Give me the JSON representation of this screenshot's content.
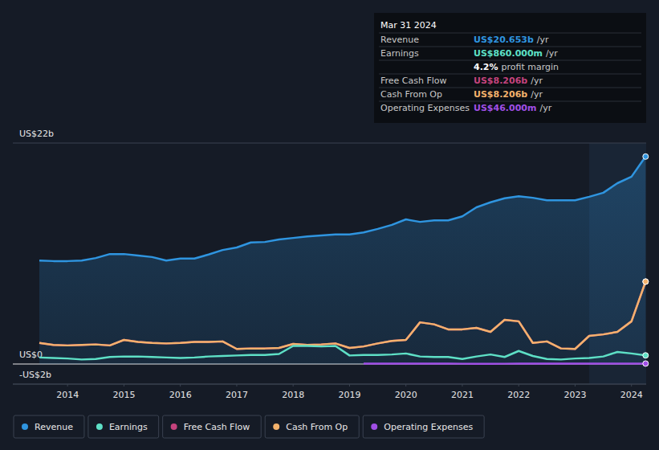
{
  "chart_data": {
    "type": "line",
    "x": [
      2013.5,
      2013.75,
      2014,
      2014.25,
      2014.5,
      2014.75,
      2015,
      2015.25,
      2015.5,
      2015.75,
      2016,
      2016.25,
      2016.5,
      2016.75,
      2017,
      2017.25,
      2017.5,
      2017.75,
      2018,
      2018.25,
      2018.5,
      2018.75,
      2019,
      2019.25,
      2019.5,
      2019.75,
      2020,
      2020.25,
      2020.5,
      2020.75,
      2021,
      2021.25,
      2021.5,
      2021.75,
      2022,
      2022.25,
      2022.5,
      2022.75,
      2023,
      2023.25,
      2023.5,
      2023.75,
      2024,
      2024.25
    ],
    "series": [
      {
        "name": "Revenue",
        "color": "#2f95e0",
        "values": [
          10.3,
          10.25,
          10.25,
          10.3,
          10.55,
          10.95,
          10.95,
          10.8,
          10.65,
          10.3,
          10.5,
          10.5,
          10.9,
          11.35,
          11.6,
          12.1,
          12.15,
          12.4,
          12.55,
          12.7,
          12.8,
          12.9,
          12.9,
          13.1,
          13.45,
          13.85,
          14.4,
          14.15,
          14.3,
          14.3,
          14.7,
          15.6,
          16.1,
          16.5,
          16.7,
          16.55,
          16.3,
          16.3,
          16.3,
          16.65,
          17.05,
          18.0,
          18.65,
          20.653
        ]
      },
      {
        "name": "Earnings",
        "color": "#5ee0c6",
        "values": [
          0.65,
          0.6,
          0.55,
          0.45,
          0.5,
          0.7,
          0.75,
          0.75,
          0.7,
          0.65,
          0.6,
          0.65,
          0.75,
          0.8,
          0.85,
          0.9,
          0.9,
          1.0,
          1.8,
          1.8,
          1.75,
          1.8,
          0.85,
          0.9,
          0.9,
          0.95,
          1.05,
          0.75,
          0.7,
          0.7,
          0.5,
          0.75,
          0.95,
          0.7,
          1.3,
          0.8,
          0.5,
          0.45,
          0.55,
          0.6,
          0.75,
          1.2,
          1.05,
          0.86
        ]
      },
      {
        "name": "Free Cash Flow",
        "color": "#c4437d",
        "values": [
          2.1,
          1.9,
          1.85,
          1.9,
          1.95,
          1.85,
          2.4,
          2.2,
          2.1,
          2.05,
          2.1,
          2.2,
          2.2,
          2.25,
          1.5,
          1.55,
          1.55,
          1.6,
          2.0,
          1.9,
          1.95,
          2.05,
          1.6,
          1.75,
          2.05,
          2.3,
          2.4,
          4.15,
          3.95,
          3.45,
          3.45,
          3.6,
          3.2,
          4.4,
          4.25,
          2.1,
          2.25,
          1.55,
          1.5,
          2.8,
          2.95,
          3.2,
          4.25,
          8.206
        ]
      },
      {
        "name": "Cash From Op",
        "color": "#f3b26c",
        "values": [
          2.1,
          1.9,
          1.85,
          1.9,
          1.95,
          1.85,
          2.4,
          2.2,
          2.1,
          2.05,
          2.1,
          2.2,
          2.2,
          2.25,
          1.5,
          1.55,
          1.55,
          1.6,
          2.0,
          1.9,
          1.95,
          2.05,
          1.6,
          1.75,
          2.05,
          2.3,
          2.4,
          4.15,
          3.95,
          3.45,
          3.45,
          3.6,
          3.2,
          4.4,
          4.25,
          2.1,
          2.25,
          1.55,
          1.5,
          2.8,
          2.95,
          3.2,
          4.25,
          8.206
        ]
      },
      {
        "name": "Operating Expenses",
        "color": "#a04fe6",
        "values": [
          null,
          null,
          null,
          null,
          null,
          null,
          null,
          null,
          null,
          null,
          null,
          null,
          null,
          null,
          null,
          null,
          null,
          null,
          null,
          null,
          null,
          null,
          null,
          0.05,
          0.05,
          0.05,
          0.05,
          0.05,
          0.05,
          0.05,
          0.03,
          0.02,
          0.02,
          0.03,
          0.04,
          0.04,
          0.04,
          0.04,
          0.045,
          0.045,
          0.045,
          0.045,
          0.046,
          0.046
        ]
      }
    ],
    "xlim": [
      2013.03,
      2024.26
    ],
    "xticks": [
      2014,
      2015,
      2016,
      2017,
      2018,
      2019,
      2020,
      2021,
      2022,
      2023,
      2024
    ],
    "ylim": [
      -2,
      22
    ],
    "yticks": [
      {
        "value": -2,
        "label": "-US$2b"
      },
      {
        "value": 0,
        "label": "US$0"
      },
      {
        "value": 22,
        "label": "US$22b"
      }
    ],
    "grid": true,
    "legend": "bottom",
    "annotation": {
      "date": "Mar 31 2024",
      "rows": [
        {
          "label": "Revenue",
          "value": "US$20.653b",
          "unit": "/yr",
          "color": "#2f95e0"
        },
        {
          "label": "Earnings",
          "value": "US$860.000m",
          "unit": "/yr",
          "color": "#5ee0c6"
        },
        {
          "label": "",
          "value": "4.2%",
          "unit": "profit margin",
          "color": "#ffffff"
        },
        {
          "label": "Free Cash Flow",
          "value": "US$8.206b",
          "unit": "/yr",
          "color": "#c4437d"
        },
        {
          "label": "Cash From Op",
          "value": "US$8.206b",
          "unit": "/yr",
          "color": "#f3b26c"
        },
        {
          "label": "Operating Expenses",
          "value": "US$46.000m",
          "unit": "/yr",
          "color": "#a04fe6"
        }
      ]
    }
  }
}
